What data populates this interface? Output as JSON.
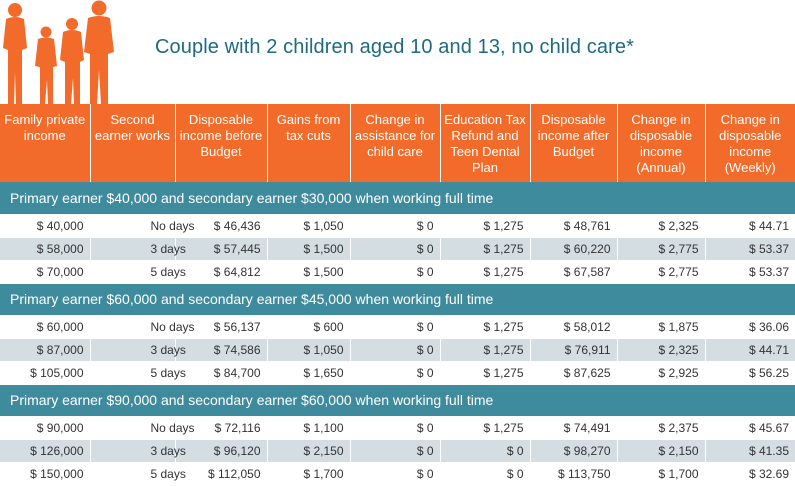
{
  "title": "Couple with 2 children aged 10 and 13, no child care*",
  "colors": {
    "header_orange": "#f26b2a",
    "section_teal": "#3f8b9e",
    "row_alt": "#d3dde2",
    "title_teal": "#1e6a82"
  },
  "icon": "family-silhouette-icon",
  "columns": [
    "Family private income",
    "Second earner works",
    "Disposable income before Budget",
    "Gains from tax cuts",
    "Change in assistance for child care",
    "Education Tax Refund and Teen Dental Plan",
    "Disposable income after Budget",
    "Change in disposable income (Annual)",
    "Change in disposable income (Weekly)"
  ],
  "sections": [
    {
      "heading": "Primary earner $40,000 and secondary earner $30,000 when working full time",
      "rows": [
        [
          "$ 40,000",
          "No days",
          "$ 46,436",
          "$ 1,050",
          "$ 0",
          "$ 1,275",
          "$ 48,761",
          "$ 2,325",
          "$ 44.71"
        ],
        [
          "$ 58,000",
          "3 days",
          "$ 57,445",
          "$ 1,500",
          "$ 0",
          "$ 1,275",
          "$ 60,220",
          "$ 2,775",
          "$ 53.37"
        ],
        [
          "$ 70,000",
          "5 days",
          "$ 64,812",
          "$ 1,500",
          "$ 0",
          "$ 1,275",
          "$ 67,587",
          "$ 2,775",
          "$ 53.37"
        ]
      ]
    },
    {
      "heading": "Primary earner $60,000 and secondary earner $45,000 when working full time",
      "rows": [
        [
          "$ 60,000",
          "No days",
          "$ 56,137",
          "$ 600",
          "$ 0",
          "$ 1,275",
          "$ 58,012",
          "$ 1,875",
          "$ 36.06"
        ],
        [
          "$ 87,000",
          "3 days",
          "$ 74,586",
          "$ 1,050",
          "$ 0",
          "$ 1,275",
          "$ 76,911",
          "$ 2,325",
          "$ 44.71"
        ],
        [
          "$ 105,000",
          "5 days",
          "$ 84,700",
          "$ 1,650",
          "$ 0",
          "$ 1,275",
          "$ 87,625",
          "$ 2,925",
          "$ 56.25"
        ]
      ]
    },
    {
      "heading": "Primary earner $90,000 and secondary earner $60,000 when working full time",
      "rows": [
        [
          "$ 90,000",
          "No days",
          "$ 72,116",
          "$ 1,100",
          "$ 0",
          "$ 1,275",
          "$ 74,491",
          "$ 2,375",
          "$ 45.67"
        ],
        [
          "$ 126,000",
          "3 days",
          "$ 96,120",
          "$ 2,150",
          "$ 0",
          "$ 0",
          "$ 98,270",
          "$ 2,150",
          "$ 41.35"
        ],
        [
          "$ 150,000",
          "5 days",
          "$ 112,050",
          "$ 1,700",
          "$ 0",
          "$ 0",
          "$ 113,750",
          "$ 1,700",
          "$ 32.69"
        ]
      ]
    }
  ]
}
